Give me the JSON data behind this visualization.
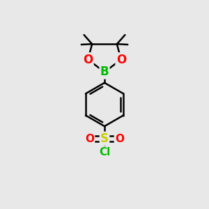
{
  "background_color": "#e8e8e8",
  "atom_colors": {
    "B": "#00bb00",
    "O": "#ff0000",
    "S": "#cccc00",
    "Cl": "#00bb00",
    "C": "#000000"
  },
  "bond_color": "#000000",
  "bond_width": 1.8,
  "figsize": [
    3.0,
    3.0
  ],
  "dpi": 100
}
